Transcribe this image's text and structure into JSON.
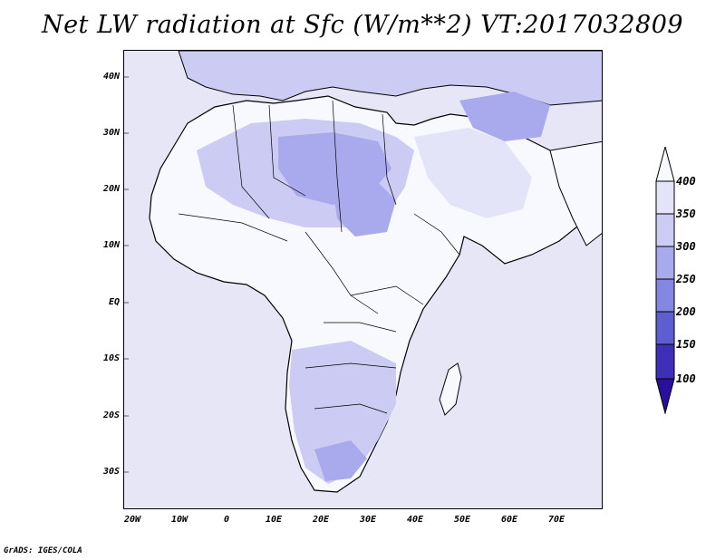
{
  "title": "Net LW radiation at Sfc (W/m**2) VT:2017032809",
  "footer": "GrADS: IGES/COLA",
  "map": {
    "lon_range": [
      -22,
      80
    ],
    "lat_range": [
      -37,
      45
    ],
    "lat_ticks": [
      "40N",
      "30N",
      "20N",
      "10N",
      "EQ",
      "10S",
      "20S",
      "30S"
    ],
    "lon_ticks": [
      "20W",
      "10W",
      "0",
      "10E",
      "20E",
      "30E",
      "40E",
      "50E",
      "60E",
      "70E"
    ]
  },
  "colorbar": {
    "labels": [
      "400",
      "350",
      "300",
      "250",
      "200",
      "150",
      "100"
    ],
    "colors": [
      "#f8f8ff",
      "#e4e4f8",
      "#cbcbf4",
      "#a9a9ee",
      "#8585e2",
      "#5e5ed0",
      "#3f2fb8",
      "#2a0f9a"
    ],
    "extend": "both"
  },
  "colors": {
    "ocean": "#e6e6f7",
    "land_light": "#f8f8ff",
    "land_mid": "#cbcbf4",
    "land_dark": "#a9a9ee",
    "coast": "#000000"
  }
}
